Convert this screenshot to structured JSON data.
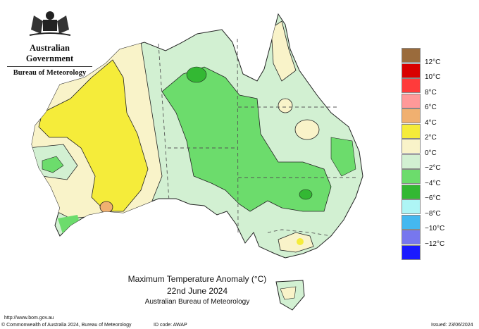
{
  "header": {
    "government": "Australian Government",
    "bureau": "Bureau of Meteorology"
  },
  "map": {
    "title": "Maximum Temperature Anomaly (°C)",
    "date": "22nd June 2024",
    "agency": "Australian Bureau of Meteorology"
  },
  "legend": {
    "items": [
      {
        "label": "12°C",
        "color": "#9a6b3c"
      },
      {
        "label": "10°C",
        "color": "#d90000"
      },
      {
        "label": "8°C",
        "color": "#ff3b3b"
      },
      {
        "label": "6°C",
        "color": "#ff9999"
      },
      {
        "label": "4°C",
        "color": "#f0b070"
      },
      {
        "label": "2°C",
        "color": "#f5ec3a"
      },
      {
        "label": "0°C",
        "color": "#f9f3c9"
      },
      {
        "label": "−2°C",
        "color": "#d2f0d2"
      },
      {
        "label": "−4°C",
        "color": "#6cdc6c"
      },
      {
        "label": "−6°C",
        "color": "#33b833"
      },
      {
        "label": "−8°C",
        "color": "#aef5f5"
      },
      {
        "label": "−10°C",
        "color": "#44b8f0"
      },
      {
        "label": "−12°C",
        "color": "#7777ee"
      },
      {
        "label": "",
        "color": "#1a1aff"
      }
    ]
  },
  "footer": {
    "url": "http://www.bom.gov.au",
    "copyright": "© Commonwealth of Australia 2024, Bureau of Meteorology",
    "id_code": "ID code: AWAP",
    "issued": "Issued: 23/06/2024"
  }
}
